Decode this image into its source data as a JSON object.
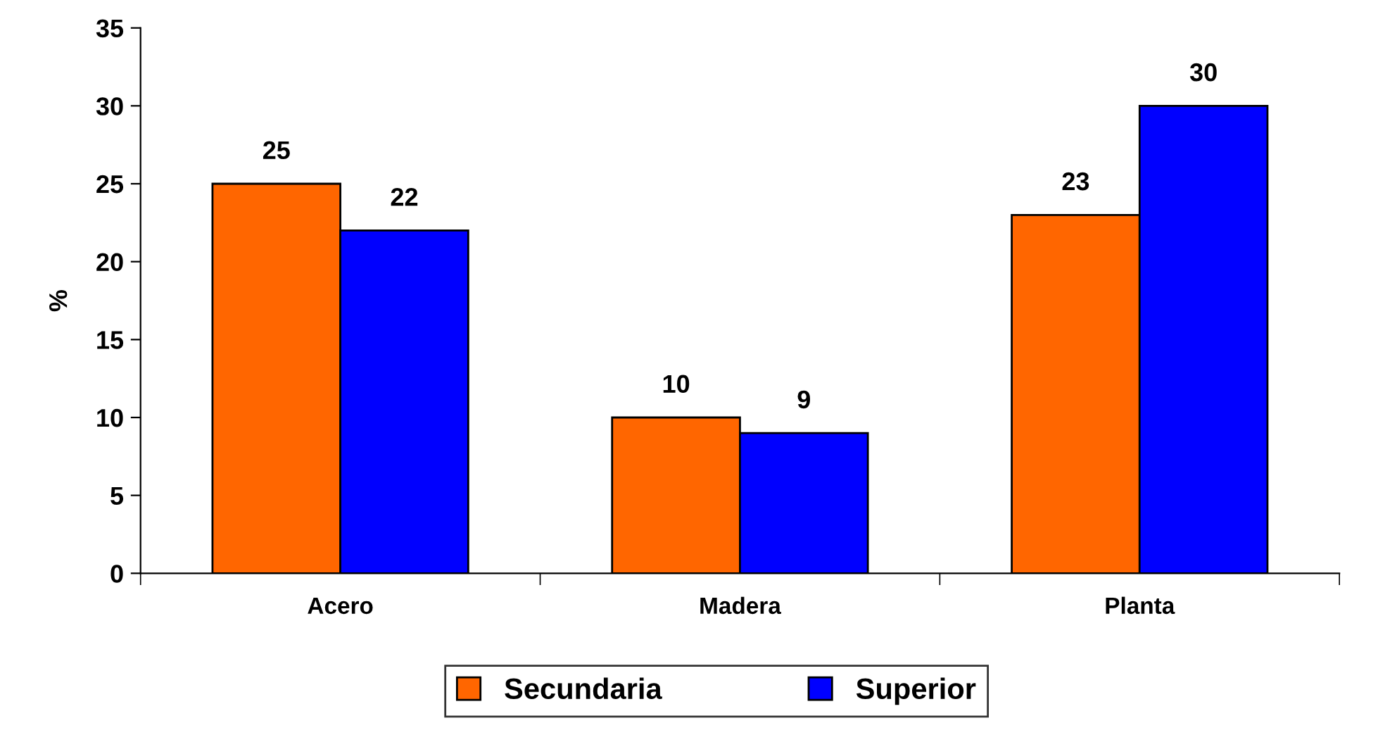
{
  "chart_data": {
    "type": "bar",
    "ylabel": "%",
    "categories": [
      "Acero",
      "Madera",
      "Planta"
    ],
    "series": [
      {
        "name": "Secundaria",
        "color": "#ff6600",
        "values": [
          25,
          10,
          23
        ]
      },
      {
        "name": "Superior",
        "color": "#0000ff",
        "values": [
          22,
          9,
          30
        ]
      }
    ],
    "ylim": [
      0,
      35
    ],
    "yticks": [
      0,
      5,
      10,
      15,
      20,
      25,
      30,
      35
    ],
    "data_labels": true,
    "legend": "bottom",
    "grid": false
  }
}
